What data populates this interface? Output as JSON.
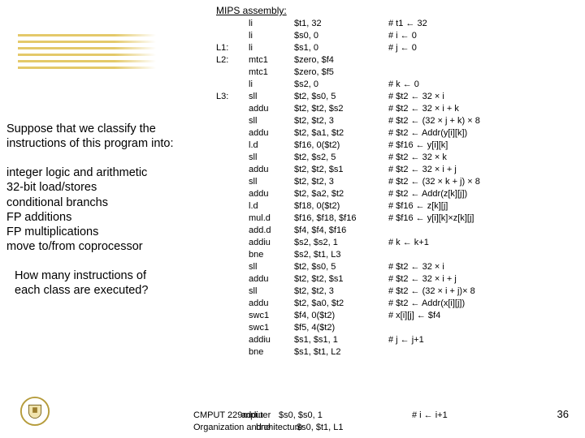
{
  "colors": {
    "stripe": "#e4c96a",
    "text": "#000000",
    "bg": "#ffffff"
  },
  "left": {
    "p1a": "Suppose that we classify the",
    "p1b": "instructions of this program into:",
    "cats": [
      "integer logic and arithmetic",
      "32-bit load/stores",
      "conditional branchs",
      "FP additions",
      "FP multiplications",
      "move to/from coprocessor"
    ],
    "q1": "How many instructions of",
    "q2": "each class are executed?"
  },
  "mips": {
    "title": "MIPS assembly:",
    "rows": [
      {
        "label": "",
        "op": "li",
        "args": "$t1, 32",
        "cmt": "# t1 ← 32"
      },
      {
        "label": "",
        "op": "li",
        "args": "$s0, 0",
        "cmt": "# i ← 0"
      },
      {
        "label": "L1:",
        "op": "li",
        "args": "$s1, 0",
        "cmt": "# j ← 0"
      },
      {
        "label": "L2:",
        "op": "mtc1",
        "args": "$zero, $f4",
        "cmt": ""
      },
      {
        "label": "",
        "op": "mtc1",
        "args": "$zero, $f5",
        "cmt": ""
      },
      {
        "label": "",
        "op": "li",
        "args": "$s2, 0",
        "cmt": "# k ← 0"
      },
      {
        "label": "L3:",
        "op": "sll",
        "args": "$t2, $s0, 5",
        "cmt": "# $t2 ← 32 × i"
      },
      {
        "label": "",
        "op": "addu",
        "args": "$t2, $t2, $s2",
        "cmt": "# $t2 ← 32 × i + k"
      },
      {
        "label": "",
        "op": "sll",
        "args": "$t2, $t2, 3",
        "cmt": "# $t2 ← (32 × j + k) × 8"
      },
      {
        "label": "",
        "op": "addu",
        "args": "$t2, $a1, $t2",
        "cmt": "# $t2 ← Addr(y[i][k])"
      },
      {
        "label": "",
        "op": "l.d",
        "args": "$f16, 0($t2)",
        "cmt": "# $f16 ← y[i][k]"
      },
      {
        "label": "",
        "op": "sll",
        "args": "$t2, $s2, 5",
        "cmt": "# $t2 ← 32 × k"
      },
      {
        "label": "",
        "op": "addu",
        "args": "$t2, $t2, $s1",
        "cmt": "# $t2 ← 32 × i + j"
      },
      {
        "label": "",
        "op": "sll",
        "args": "$t2, $t2, 3",
        "cmt": "# $t2 ← (32 × k + j) × 8"
      },
      {
        "label": "",
        "op": "addu",
        "args": "$t2, $a2, $t2",
        "cmt": "# $t2 ← Addr(z[k][j])"
      },
      {
        "label": "",
        "op": "l.d",
        "args": "$f18, 0($t2)",
        "cmt": "# $f16 ← z[k][j]"
      },
      {
        "label": "",
        "op": "mul.d",
        "args": "$f16, $f18, $f16",
        "cmt": "# $f16 ← y[i][k]×z[k][j]"
      },
      {
        "label": "",
        "op": "add.d",
        "args": "$f4, $f4, $f16",
        "cmt": ""
      },
      {
        "label": "",
        "op": "addiu",
        "args": "$s2, $s2, 1",
        "cmt": "# k ← k+1"
      },
      {
        "label": "",
        "op": "bne",
        "args": "$s2, $t1, L3",
        "cmt": ""
      },
      {
        "label": "",
        "op": "sll",
        "args": "$t2, $s0, 5",
        "cmt": "# $t2 ← 32 × i"
      },
      {
        "label": "",
        "op": "addu",
        "args": "$t2, $t2, $s1",
        "cmt": "# $t2 ← 32 × i + j"
      },
      {
        "label": "",
        "op": "sll",
        "args": "$t2, $t2, 3",
        "cmt": "# $t2 ← (32 × i + j)× 8"
      },
      {
        "label": "",
        "op": "addu",
        "args": "$t2, $a0, $t2",
        "cmt": "# $t2 ← Addr(x[i][j])"
      },
      {
        "label": "",
        "op": "swc1",
        "args": "$f4, 0($t2)",
        "cmt": "# x[i][j] ← $f4"
      },
      {
        "label": "",
        "op": "swc1",
        "args": "$f5, 4($t2)",
        "cmt": ""
      },
      {
        "label": "",
        "op": "addiu",
        "args": "$s1, $s1, 1",
        "cmt": "# j ← j+1"
      },
      {
        "label": "",
        "op": "bne",
        "args": "$s1, $t1, L2",
        "cmt": ""
      }
    ]
  },
  "footer": {
    "line1_pre": "CMPUT 229",
    "line1_op": "addiu",
    "line1_mid": "mputer",
    "line1_args": "$s0, $s0, 1",
    "line1_cmt": "# i ← i+1",
    "line2_pre": "Organization and",
    "line2_op": "bne",
    "line2_mid": "rchitecture",
    "line2_args": "$s0, $t1, L1",
    "pagenum": "36"
  }
}
